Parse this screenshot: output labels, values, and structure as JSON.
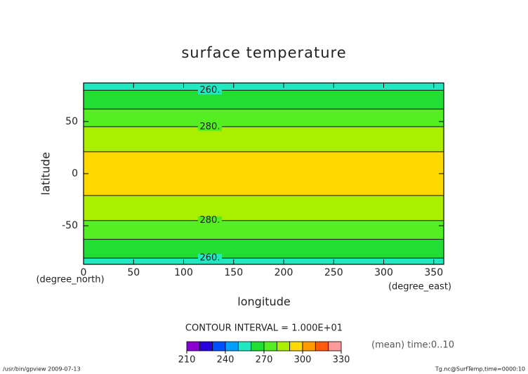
{
  "chart_data": {
    "type": "contour",
    "title": "surface temperature",
    "x_label": "longitude",
    "y_label": "latitude",
    "x_unit": "(degree_east)",
    "y_unit": "(degree_north)",
    "xlim": [
      0,
      360
    ],
    "ylim": [
      -87,
      87
    ],
    "xticks": [
      0,
      50,
      100,
      150,
      200,
      250,
      300,
      350
    ],
    "yticks": [
      -50,
      0,
      50
    ],
    "bands": {
      "edges": [
        -87,
        -81,
        -63,
        -45,
        -21,
        21,
        45,
        62,
        80,
        87
      ],
      "levels": [
        250,
        260,
        270,
        280,
        290,
        280,
        270,
        260,
        250
      ]
    },
    "contour_labels": [
      {
        "value": 260,
        "label": "260.",
        "lat": 80
      },
      {
        "value": 280,
        "label": "280.",
        "lat": 45
      },
      {
        "value": 280,
        "label": "280.",
        "lat": -45
      },
      {
        "value": 260,
        "label": "260.",
        "lat": -81
      }
    ],
    "contour_interval": "CONTOUR INTERVAL = 1.000E+01",
    "colorbar": {
      "levels": [
        210,
        220,
        230,
        240,
        250,
        260,
        270,
        280,
        290,
        300,
        310,
        320,
        330
      ],
      "colors": [
        "#8a00d4",
        "#2a00e0",
        "#0050ff",
        "#00a0ff",
        "#20e8c0",
        "#22dd33",
        "#55ee22",
        "#aaee00",
        "#ffd800",
        "#ff9a00",
        "#ff5a10",
        "#ff9a9a"
      ],
      "ticks": [
        210,
        240,
        270,
        300,
        330
      ]
    },
    "annotation": "(mean) time:0..10",
    "footer_left": "/usr/bin/gpview  2009-07-13",
    "footer_right": "Tg.nc@SurfTemp,time=0000:10"
  }
}
